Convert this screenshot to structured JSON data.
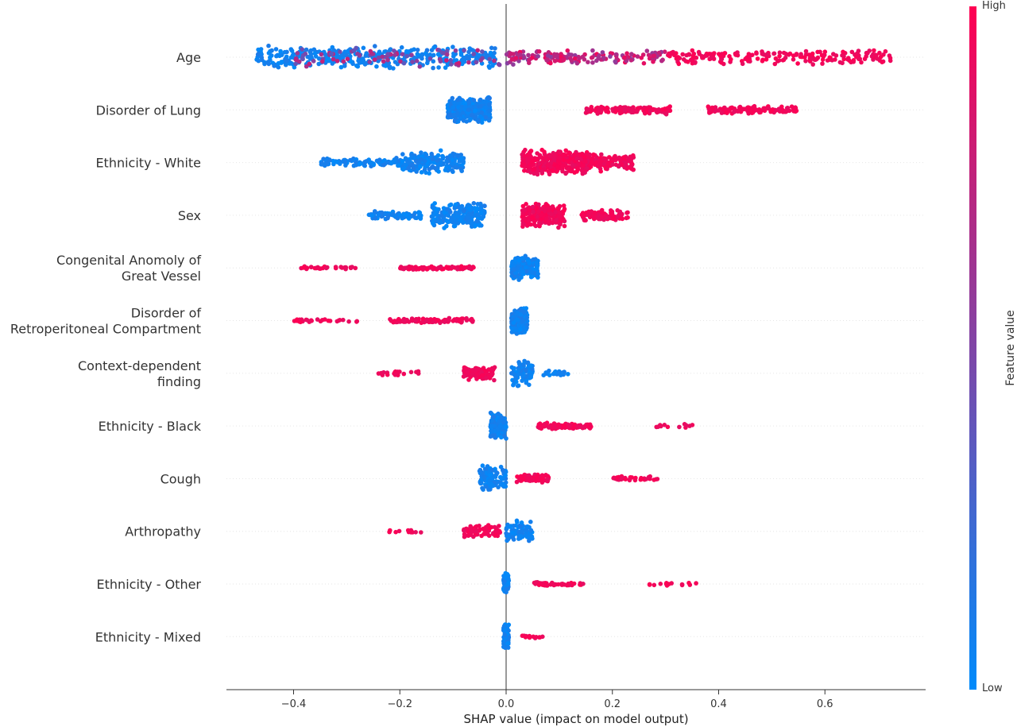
{
  "chart_data": {
    "type": "scatter",
    "subtype": "shap-beeswarm-summary",
    "xlabel": "SHAP value (impact on model output)",
    "xlim": [
      -0.52,
      0.79
    ],
    "xticks": [
      -0.4,
      -0.2,
      0.0,
      0.2,
      0.4,
      0.6
    ],
    "xtick_labels": [
      "−0.4",
      "−0.2",
      "0.0",
      "0.2",
      "0.4",
      "0.6"
    ],
    "zero_line": 0.0,
    "grid": false,
    "colorbar": {
      "title": "Feature value",
      "high_label": "High",
      "low_label": "Low",
      "low_color": "#008bfb",
      "high_color": "#ff0052"
    },
    "features": [
      {
        "label": [
          "Age"
        ],
        "points": [
          {
            "x_range": [
              -0.47,
              -0.02
            ],
            "value": "low",
            "count": 360,
            "spread": 0.9
          },
          {
            "x_range": [
              -0.4,
              0.05
            ],
            "value": "mid",
            "count": 100,
            "spread": 0.75
          },
          {
            "x_range": [
              0.0,
              0.3
            ],
            "value": "mid-high",
            "count": 150,
            "spread": 0.55
          },
          {
            "x_range": [
              0.3,
              0.73
            ],
            "value": "high",
            "count": 200,
            "spread": 0.6
          }
        ]
      },
      {
        "label": [
          "Disorder of Lung"
        ],
        "points": [
          {
            "x_range": [
              -0.11,
              -0.03
            ],
            "value": "low",
            "count": 400,
            "spread": 1.0
          },
          {
            "x_range": [
              0.15,
              0.31
            ],
            "value": "high",
            "count": 120,
            "spread": 0.35
          },
          {
            "x_range": [
              0.38,
              0.55
            ],
            "value": "high",
            "count": 120,
            "spread": 0.3
          }
        ]
      },
      {
        "label": [
          "Ethnicity - White"
        ],
        "points": [
          {
            "x_range": [
              -0.35,
              -0.2
            ],
            "value": "low",
            "count": 90,
            "spread": 0.35
          },
          {
            "x_range": [
              -0.2,
              -0.08
            ],
            "value": "low",
            "count": 200,
            "spread": 0.9
          },
          {
            "x_range": [
              0.03,
              0.16
            ],
            "value": "high",
            "count": 320,
            "spread": 1.0
          },
          {
            "x_range": [
              0.14,
              0.24
            ],
            "value": "high",
            "count": 140,
            "spread": 0.7
          }
        ]
      },
      {
        "label": [
          "Sex"
        ],
        "points": [
          {
            "x_range": [
              -0.26,
              -0.16
            ],
            "value": "low",
            "count": 70,
            "spread": 0.35
          },
          {
            "x_range": [
              -0.14,
              -0.04
            ],
            "value": "low",
            "count": 200,
            "spread": 1.0
          },
          {
            "x_range": [
              0.03,
              0.11
            ],
            "value": "high",
            "count": 220,
            "spread": 1.0
          },
          {
            "x_range": [
              0.14,
              0.23
            ],
            "value": "high",
            "count": 90,
            "spread": 0.45
          }
        ]
      },
      {
        "label": [
          "Congenital Anomoly of",
          "Great Vessel"
        ],
        "points": [
          {
            "x_range": [
              -0.4,
              -0.28
            ],
            "value": "high",
            "count": 30,
            "spread": 0.12
          },
          {
            "x_range": [
              -0.2,
              -0.06
            ],
            "value": "high",
            "count": 80,
            "spread": 0.15
          },
          {
            "x_range": [
              0.01,
              0.06
            ],
            "value": "low",
            "count": 180,
            "spread": 1.0
          }
        ]
      },
      {
        "label": [
          "Disorder of",
          "Retroperitoneal Compartment"
        ],
        "points": [
          {
            "x_range": [
              -0.4,
              -0.28
            ],
            "value": "high",
            "count": 30,
            "spread": 0.15
          },
          {
            "x_range": [
              -0.22,
              -0.06
            ],
            "value": "high",
            "count": 90,
            "spread": 0.2
          },
          {
            "x_range": [
              0.01,
              0.04
            ],
            "value": "low",
            "count": 170,
            "spread": 1.0
          }
        ]
      },
      {
        "label": [
          "Context-dependent",
          "finding"
        ],
        "points": [
          {
            "x_range": [
              -0.24,
              -0.14
            ],
            "value": "high",
            "count": 20,
            "spread": 0.2
          },
          {
            "x_range": [
              -0.08,
              -0.02
            ],
            "value": "high",
            "count": 90,
            "spread": 0.6
          },
          {
            "x_range": [
              0.01,
              0.05
            ],
            "value": "low",
            "count": 100,
            "spread": 1.0
          },
          {
            "x_range": [
              0.07,
              0.12
            ],
            "value": "low",
            "count": 25,
            "spread": 0.2
          }
        ]
      },
      {
        "label": [
          "Ethnicity - Black"
        ],
        "points": [
          {
            "x_range": [
              -0.03,
              0.0
            ],
            "value": "low",
            "count": 120,
            "spread": 1.0
          },
          {
            "x_range": [
              0.06,
              0.16
            ],
            "value": "high",
            "count": 90,
            "spread": 0.25
          },
          {
            "x_range": [
              0.28,
              0.36
            ],
            "value": "high",
            "count": 12,
            "spread": 0.15
          }
        ]
      },
      {
        "label": [
          "Cough"
        ],
        "points": [
          {
            "x_range": [
              -0.05,
              0.0
            ],
            "value": "low",
            "count": 110,
            "spread": 1.0
          },
          {
            "x_range": [
              0.02,
              0.08
            ],
            "value": "high",
            "count": 60,
            "spread": 0.35
          },
          {
            "x_range": [
              0.2,
              0.29
            ],
            "value": "high",
            "count": 30,
            "spread": 0.2
          }
        ]
      },
      {
        "label": [
          "Arthropathy"
        ],
        "points": [
          {
            "x_range": [
              -0.22,
              -0.16
            ],
            "value": "high",
            "count": 12,
            "spread": 0.15
          },
          {
            "x_range": [
              -0.08,
              -0.01
            ],
            "value": "high",
            "count": 70,
            "spread": 0.5
          },
          {
            "x_range": [
              0.0,
              0.05
            ],
            "value": "low",
            "count": 80,
            "spread": 0.9
          }
        ]
      },
      {
        "label": [
          "Ethnicity - Other"
        ],
        "points": [
          {
            "x_range": [
              -0.005,
              0.005
            ],
            "value": "low",
            "count": 80,
            "spread": 0.9
          },
          {
            "x_range": [
              0.05,
              0.16
            ],
            "value": "high",
            "count": 40,
            "spread": 0.15
          },
          {
            "x_range": [
              0.27,
              0.36
            ],
            "value": "high",
            "count": 14,
            "spread": 0.15
          }
        ]
      },
      {
        "label": [
          "Ethnicity - Mixed"
        ],
        "points": [
          {
            "x_range": [
              -0.005,
              0.005
            ],
            "value": "low",
            "count": 90,
            "spread": 1.0
          },
          {
            "x_range": [
              0.03,
              0.07
            ],
            "value": "high",
            "count": 14,
            "spread": 0.12
          }
        ]
      }
    ]
  }
}
